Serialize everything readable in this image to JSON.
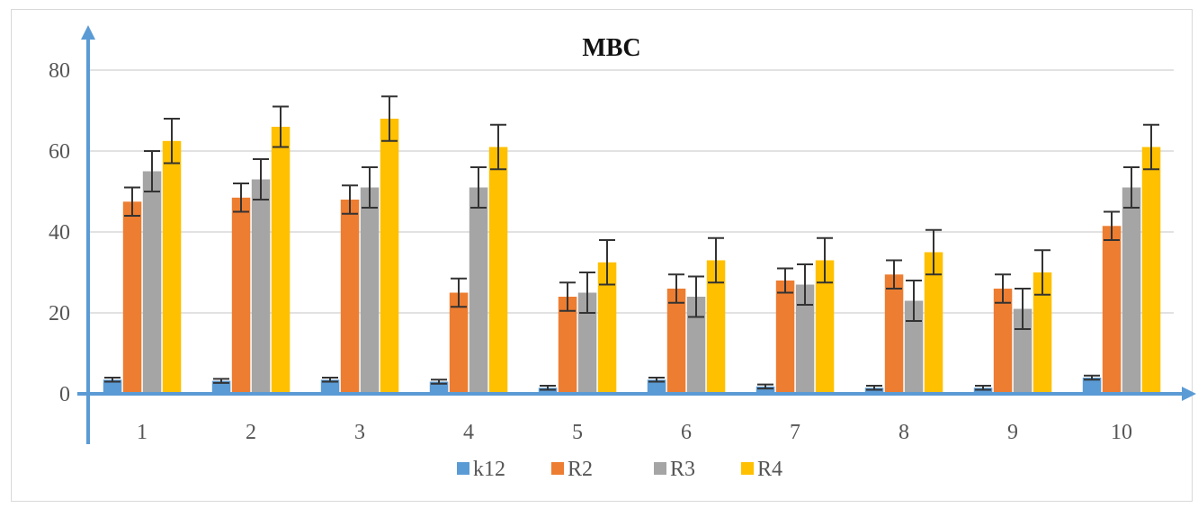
{
  "chart_data": {
    "type": "bar",
    "title": "MBC",
    "xlabel": "",
    "ylabel": "",
    "categories": [
      "1",
      "2",
      "3",
      "4",
      "5",
      "6",
      "7",
      "8",
      "9",
      "10"
    ],
    "ylim": [
      0,
      90
    ],
    "yticks": [
      "0",
      "20",
      "40",
      "60",
      "80"
    ],
    "grid": true,
    "legend_position": "bottom",
    "error_bars": true,
    "series": [
      {
        "name": "k12",
        "color": "#5b9bd5",
        "values": [
          3.5,
          3.2,
          3.5,
          3.0,
          1.5,
          3.5,
          1.8,
          1.5,
          1.5,
          4.0
        ],
        "errors": [
          0.5,
          0.5,
          0.5,
          0.5,
          0.5,
          0.5,
          0.5,
          0.5,
          0.5,
          0.5
        ]
      },
      {
        "name": "R2",
        "color": "#ed7d31",
        "values": [
          47.5,
          48.5,
          48,
          25,
          24,
          26,
          28,
          29.5,
          26,
          41.5
        ],
        "errors": [
          3.5,
          3.5,
          3.5,
          3.5,
          3.5,
          3.5,
          3,
          3.5,
          3.5,
          3.5
        ]
      },
      {
        "name": "R3",
        "color": "#a5a5a5",
        "values": [
          55,
          53,
          51,
          51,
          25,
          24,
          27,
          23,
          21,
          51
        ],
        "errors": [
          5,
          5,
          5,
          5,
          5,
          5,
          5,
          5,
          5,
          5
        ]
      },
      {
        "name": "R4",
        "color": "#ffc000",
        "values": [
          62.5,
          66,
          68,
          61,
          32.5,
          33,
          33,
          35,
          30,
          61
        ],
        "errors": [
          5.5,
          5,
          5.5,
          5.5,
          5.5,
          5.5,
          5.5,
          5.5,
          5.5,
          5.5
        ]
      }
    ]
  }
}
